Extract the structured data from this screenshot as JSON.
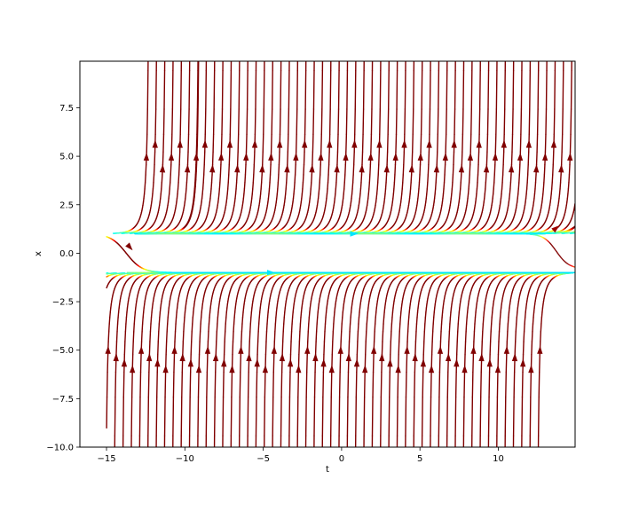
{
  "chart_data": {
    "type": "streamplot",
    "title": "",
    "xlabel": "t",
    "ylabel": "x",
    "xlim": [
      -16.7,
      14.9
    ],
    "ylim": [
      -10.0,
      9.9
    ],
    "xticks": [
      -15,
      -10,
      -5,
      0,
      5,
      10
    ],
    "xtick_labels": [
      "−15",
      "−10",
      "−5",
      "0",
      "5",
      "10"
    ],
    "yticks": [
      -10.0,
      -7.5,
      -5.0,
      -2.5,
      0.0,
      2.5,
      5.0,
      7.5
    ],
    "ytick_labels": [
      "−10.0",
      "−7.5",
      "−5.0",
      "−2.5",
      "0.0",
      "2.5",
      "5.0",
      "7.5"
    ],
    "equilibria": [
      1.0,
      -1.0
    ],
    "stream_t_range": [
      -15.0,
      14.9
    ],
    "colormap": "jet",
    "grid": false,
    "legend": "none"
  }
}
